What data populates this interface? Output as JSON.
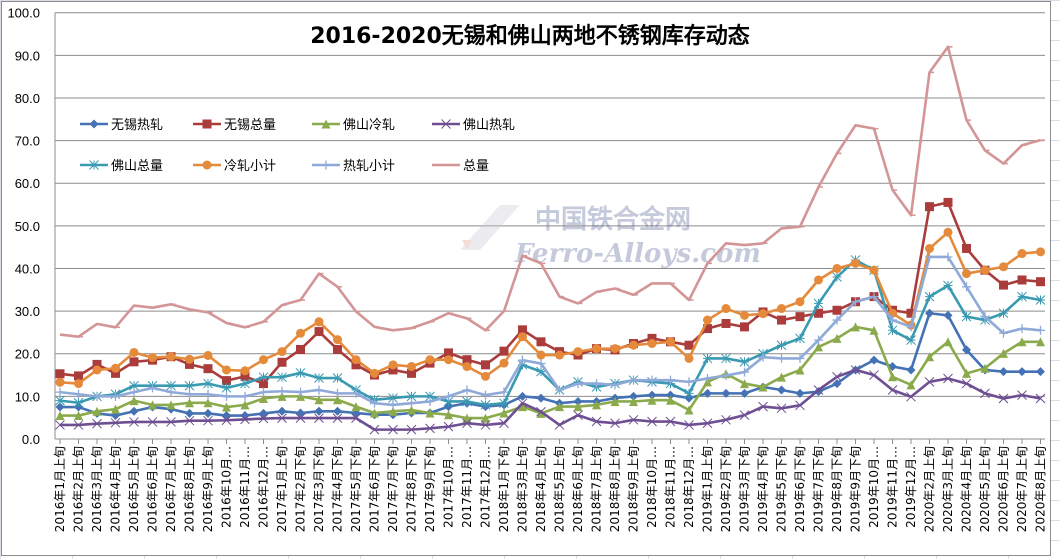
{
  "watermark": {
    "cn": "中国铁合金网",
    "en": "Ferro-Alloys.com"
  },
  "chart_data": {
    "type": "line",
    "title": "2016-2020无锡和佛山两地不锈钢库存动态",
    "xlabel": "",
    "ylabel": "",
    "ylim": [
      0,
      100
    ],
    "yticks": [
      "0.0",
      "10.0",
      "20.0",
      "30.0",
      "40.0",
      "50.0",
      "60.0",
      "70.0",
      "80.0",
      "90.0",
      "100.0"
    ],
    "grid": "horizontal",
    "legend": "top-left, inside plot",
    "categories": [
      "2016年1月上旬",
      "2016年2月上旬",
      "2016年3月上旬",
      "2016年4月上旬",
      "2016年5月上旬",
      "2016年6月上旬",
      "2016年7月上旬",
      "2016年8月上旬",
      "2016年9月上旬",
      "2016年10月…",
      "2016年11月…",
      "2016年12月…",
      "2017年1月上旬",
      "2017年2月下旬",
      "2017年3月下旬",
      "2017年4月下旬",
      "2017年5月下旬",
      "2017年6月下旬",
      "2017年7月下旬",
      "2017年8月下旬",
      "2017年9月下旬",
      "2017年10月…",
      "2017年11月…",
      "2017年12月…",
      "2018年1月下旬",
      "2018年3月上旬",
      "2018年4月上旬",
      "2018年5月上旬",
      "2018年6月上旬",
      "2018年7月上旬",
      "2018年8月上旬",
      "2018年9月上旬",
      "2018年10月…",
      "2018年11月…",
      "2018年12月…",
      "2019年1月上旬",
      "2019年2月下旬",
      "2019年3月下旬",
      "2019年4月下旬",
      "2019年5月下旬",
      "2019年6月下旬",
      "2019年7月下旬",
      "2019年8月下旬",
      "2019年9月下旬",
      "2019年10月…",
      "2019年11月…",
      "2019年12月…",
      "2020年2月上旬",
      "2020年3月上旬",
      "2020年4月上旬",
      "2020年5月上旬",
      "2020年6月上旬",
      "2020年7月上旬",
      "2020年8月上旬"
    ],
    "series": [
      {
        "name": "无锡热轧",
        "color": "#4472B4",
        "marker": "diamond",
        "values": [
          7.5,
          7.5,
          6,
          5.5,
          6.5,
          7.5,
          7,
          6,
          6,
          5.5,
          5.5,
          6,
          6.5,
          6.1,
          6.5,
          6.5,
          6.1,
          5.7,
          5.7,
          6.1,
          6.1,
          7.6,
          8.4,
          7.6,
          8,
          10,
          9.6,
          8.4,
          8.8,
          8.8,
          9.6,
          10,
          10.3,
          10.3,
          9.6,
          10.7,
          10.7,
          10.7,
          12.2,
          11.5,
          10.7,
          11.1,
          13,
          16.2,
          18.5,
          17,
          16.2,
          29.5,
          29,
          20.9,
          16.2,
          15.8,
          15.8,
          15.8
        ]
      },
      {
        "name": "无锡总量",
        "color": "#AA3D3B",
        "marker": "square",
        "values": [
          15.3,
          14.8,
          17.5,
          15.4,
          18.1,
          18.5,
          19.3,
          17.5,
          16.5,
          13.7,
          14.7,
          13,
          18,
          21,
          25.2,
          21,
          17.4,
          15,
          16.2,
          15.4,
          17.8,
          20.2,
          18.6,
          17.4,
          20.6,
          25.6,
          22.8,
          20.5,
          19.7,
          21.2,
          20.9,
          22.4,
          23.6,
          22.8,
          22,
          25.9,
          27.1,
          26.3,
          29.8,
          27.9,
          28.7,
          29.5,
          30.2,
          32.2,
          33.4,
          30.2,
          29.5,
          54.5,
          55.5,
          44.7,
          39.6,
          36.1,
          37.3,
          36.9
        ]
      },
      {
        "name": "佛山冷轧",
        "color": "#8BAA4C",
        "marker": "triangle",
        "values": [
          5.5,
          5.5,
          6.5,
          7,
          9,
          8,
          8,
          8.5,
          8.5,
          7.5,
          8,
          9.5,
          10,
          10,
          9.2,
          9.2,
          7.6,
          6.1,
          6.5,
          6.8,
          6.1,
          5.7,
          4.9,
          4.9,
          6.1,
          7.6,
          6,
          7.6,
          7.6,
          8,
          8.8,
          8.8,
          9.1,
          9.1,
          6.8,
          13.4,
          15.3,
          13,
          12.2,
          14.5,
          16.2,
          21.6,
          23.6,
          26.3,
          25.5,
          14.6,
          12.7,
          19.3,
          22.8,
          15.4,
          16.6,
          20.1,
          22.8,
          22.8
        ]
      },
      {
        "name": "佛山热轧",
        "color": "#6E4F92",
        "marker": "x",
        "values": [
          3.3,
          3.3,
          3.6,
          3.8,
          4,
          4,
          4,
          4.3,
          4.3,
          4.4,
          4.6,
          4.8,
          4.9,
          4.9,
          4.9,
          4.9,
          4.9,
          2.2,
          2.2,
          2.2,
          2.5,
          2.9,
          3.7,
          3.3,
          3.7,
          8.4,
          6.4,
          3.3,
          5.6,
          4.1,
          3.7,
          4.5,
          4.1,
          4.1,
          3.3,
          3.7,
          4.5,
          5.6,
          7.6,
          7.2,
          7.9,
          11.5,
          14.6,
          16.2,
          15,
          11.5,
          9.9,
          13.4,
          14.2,
          13,
          10.7,
          9.5,
          10.3,
          9.5
        ]
      },
      {
        "name": "佛山总量",
        "color": "#3A9AB2",
        "marker": "asterisk",
        "values": [
          9,
          8.5,
          10,
          10.5,
          12.5,
          12.5,
          12.5,
          12.5,
          13,
          12,
          13,
          14.5,
          14.5,
          15.5,
          14.3,
          14.3,
          11.5,
          9.2,
          9.6,
          10,
          10,
          8.8,
          8.8,
          8,
          8.4,
          17.4,
          15.8,
          11.5,
          13.4,
          12.2,
          13,
          13.8,
          13.4,
          13,
          10.7,
          18.9,
          18.9,
          18.1,
          20,
          22,
          23.6,
          31.8,
          38,
          42,
          39.6,
          25.5,
          23.2,
          33.4,
          36,
          28.7,
          27.9,
          29.5,
          33.4,
          32.6
        ]
      },
      {
        "name": "冷轧小计",
        "color": "#E48A3A",
        "marker": "circle",
        "values": [
          13.3,
          13,
          16.2,
          16.6,
          20.3,
          19.1,
          19.3,
          18.7,
          19.6,
          16.2,
          16,
          18.6,
          20.5,
          24.8,
          27.5,
          23.3,
          18.6,
          15.4,
          17.4,
          17,
          18.6,
          18.6,
          17,
          14.7,
          17.8,
          24,
          19.7,
          19.7,
          20.5,
          21.2,
          21.2,
          22,
          22.4,
          22.8,
          18.9,
          27.9,
          30.6,
          29,
          29.4,
          30.6,
          32.2,
          37.3,
          40,
          41.2,
          39.6,
          29.5,
          26.7,
          44.7,
          48.5,
          38.8,
          39.6,
          40.4,
          43.5,
          43.9
        ]
      },
      {
        "name": "热轧小计",
        "color": "#8FA9D8",
        "marker": "plus",
        "values": [
          11,
          10.5,
          10,
          10,
          11,
          12,
          11,
          10.5,
          10.5,
          10,
          10,
          11,
          11.2,
          11,
          11.5,
          10.7,
          10.7,
          8.4,
          8,
          8.4,
          8.8,
          10,
          11.5,
          10.3,
          11,
          18.5,
          17.7,
          11.5,
          13,
          13,
          12.7,
          13.8,
          13.8,
          13.8,
          13.4,
          14.2,
          14.9,
          15.7,
          19.2,
          18.9,
          18.9,
          23.2,
          27.9,
          32.2,
          33.4,
          27.9,
          26.3,
          42.7,
          42.7,
          35.7,
          28.7,
          24.8,
          25.9,
          25.5
        ]
      },
      {
        "name": "总量",
        "color": "#D39595",
        "marker": "dash",
        "values": [
          24.5,
          24,
          27,
          26.2,
          31.3,
          30.8,
          31.6,
          30.4,
          29.7,
          27.2,
          26.2,
          27.5,
          31.4,
          32.6,
          38.8,
          35.7,
          29.9,
          26.3,
          25.5,
          26,
          27.5,
          29.5,
          28.3,
          25.5,
          30,
          43,
          41.2,
          33.4,
          31.8,
          34.5,
          35.3,
          33.8,
          36.5,
          36.5,
          32.6,
          41.2,
          45.9,
          45.5,
          45.9,
          49.4,
          49.8,
          59.1,
          67,
          73.6,
          72.8,
          58.4,
          52.5,
          86,
          92,
          74.8,
          67.7,
          64.6,
          68.9,
          70.1
        ]
      }
    ]
  }
}
